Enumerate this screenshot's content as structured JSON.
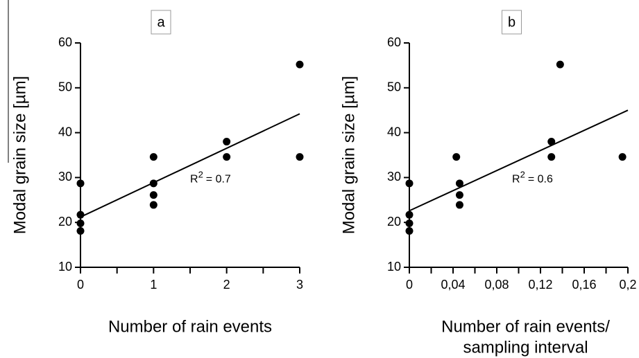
{
  "chart_data": [
    {
      "type": "scatter",
      "panel_label": "a",
      "x_label": [
        "Number of rain events"
      ],
      "y_label": "Modal grain size [µm]",
      "x": [
        0,
        0,
        0,
        0,
        1,
        1,
        1,
        1,
        2,
        2,
        3,
        3
      ],
      "values": [
        28.7,
        21.7,
        19.8,
        18.1,
        34.6,
        28.7,
        26.1,
        23.9,
        38,
        34.6,
        55.2,
        34.6
      ],
      "color": "#000000",
      "fit": {
        "x": [
          0,
          3
        ],
        "y": [
          21.2,
          44.2
        ]
      },
      "annotation": {
        "base": "R",
        "sup": "2",
        "rest": "= 0.7",
        "x": 1.5,
        "y": 29.5
      },
      "xlim": [
        0,
        3
      ],
      "xticks": [
        0,
        1,
        2,
        3
      ],
      "xminorticks": [
        0.5,
        1.5,
        2.5
      ],
      "ylim": [
        10,
        60
      ],
      "yticks": [
        10,
        20,
        30,
        40,
        50,
        60
      ]
    },
    {
      "type": "scatter",
      "panel_label": "b",
      "x_label": [
        "Number of rain events/",
        "sampling interval"
      ],
      "y_label": "Modal grain size [µm]",
      "x": [
        0,
        0,
        0,
        0,
        0.043,
        0.046,
        0.046,
        0.046,
        0.13,
        0.13,
        0.138,
        0.195
      ],
      "values": [
        28.7,
        21.7,
        19.8,
        18.1,
        34.6,
        28.7,
        26.1,
        23.9,
        38,
        34.6,
        55.2,
        34.6
      ],
      "color": "#000000",
      "fit": {
        "x": [
          0,
          0.2
        ],
        "y": [
          22.6,
          45
        ]
      },
      "annotation": {
        "base": "R",
        "sup": "2",
        "rest": "= 0.6",
        "x": 0.094,
        "y": 29.5
      },
      "xlim": [
        0,
        0.2
      ],
      "xticks": [
        0,
        {
          "value": 0.04,
          "label": "0,04"
        },
        {
          "value": 0.08,
          "label": "0,08"
        },
        {
          "value": 0.12,
          "label": "0,12"
        },
        {
          "value": 0.16,
          "label": "0,16"
        },
        {
          "value": 0.2,
          "label": "0,2"
        }
      ],
      "xminorticks": [
        0.02,
        0.06,
        0.1,
        0.14,
        0.18
      ],
      "ylim": [
        10,
        60
      ],
      "yticks": [
        10,
        20,
        30,
        40,
        50,
        60
      ]
    }
  ]
}
